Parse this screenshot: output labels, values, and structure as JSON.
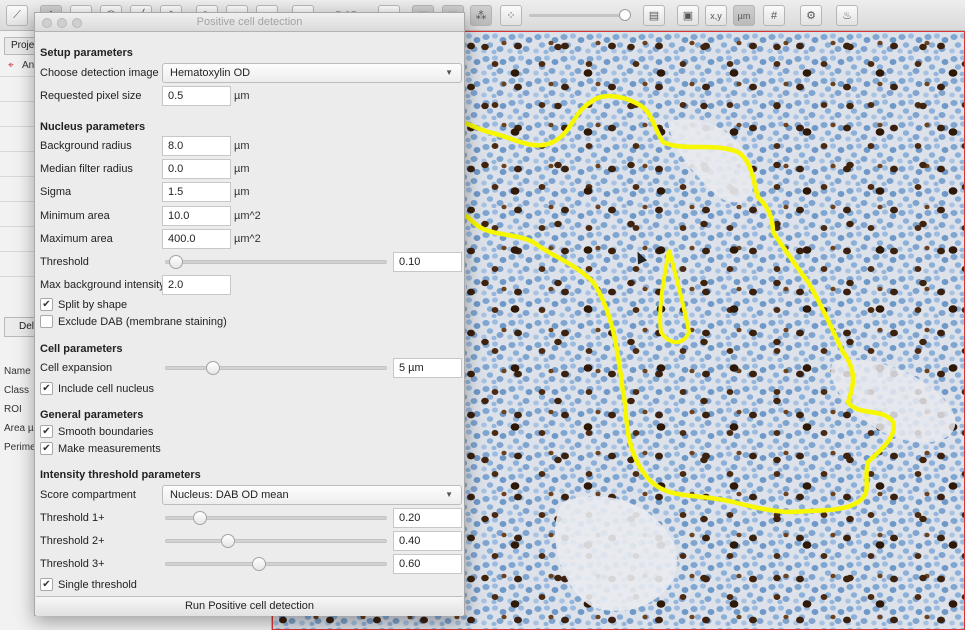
{
  "toolbar": {
    "zoom_label": "5.35"
  },
  "left_panel": {
    "tab_project": "Proje",
    "annotation_item": "An",
    "delete_button": "Del",
    "props": [
      "Name",
      "Class",
      "ROI",
      "Area µ",
      "Perime"
    ]
  },
  "dialog": {
    "title": "Positive cell detection",
    "setup": {
      "heading": "Setup parameters",
      "detection_image_label": "Choose detection image",
      "detection_image_value": "Hematoxylin OD",
      "pixel_size_label": "Requested pixel size",
      "pixel_size_value": "0.5",
      "pixel_size_unit": "µm"
    },
    "nucleus": {
      "heading": "Nucleus parameters",
      "background_radius_label": "Background radius",
      "background_radius_value": "8.0",
      "background_radius_unit": "µm",
      "median_filter_label": "Median filter radius",
      "median_filter_value": "0.0",
      "median_filter_unit": "µm",
      "sigma_label": "Sigma",
      "sigma_value": "1.5",
      "sigma_unit": "µm",
      "min_area_label": "Minimum area",
      "min_area_value": "10.0",
      "min_area_unit": "µm^2",
      "max_area_label": "Maximum area",
      "max_area_value": "400.0",
      "max_area_unit": "µm^2",
      "threshold_label": "Threshold",
      "threshold_value": "0.10",
      "threshold_fraction": 0.03,
      "max_bg_label": "Max background intensity",
      "max_bg_value": "2.0",
      "split_label": "Split by shape",
      "split_checked": true,
      "exclude_dab_label": "Exclude DAB (membrane staining)",
      "exclude_dab_checked": false
    },
    "cell": {
      "heading": "Cell parameters",
      "expansion_label": "Cell expansion",
      "expansion_value": "5 µm",
      "expansion_fraction": 0.2,
      "include_nucleus_label": "Include cell nucleus",
      "include_nucleus_checked": true
    },
    "general": {
      "heading": "General parameters",
      "smooth_label": "Smooth boundaries",
      "smooth_checked": true,
      "measure_label": "Make measurements",
      "measure_checked": true
    },
    "intensity": {
      "heading": "Intensity threshold parameters",
      "compartment_label": "Score compartment",
      "compartment_value": "Nucleus: DAB OD mean",
      "t1_label": "Threshold 1+",
      "t1_value": "0.20",
      "t1_fraction": 0.14,
      "t2_label": "Threshold 2+",
      "t2_value": "0.40",
      "t2_fraction": 0.27,
      "t3_label": "Threshold 3+",
      "t3_value": "0.60",
      "t3_fraction": 0.41,
      "single_label": "Single threshold",
      "single_checked": true
    },
    "run_button": "Run Positive cell detection"
  },
  "colors": {
    "annotation_outline": "#f7f700",
    "positive_nucleus": "#4a2a12",
    "negative_nucleus": "#7fa6d0",
    "viewer_border": "#dd3333"
  }
}
